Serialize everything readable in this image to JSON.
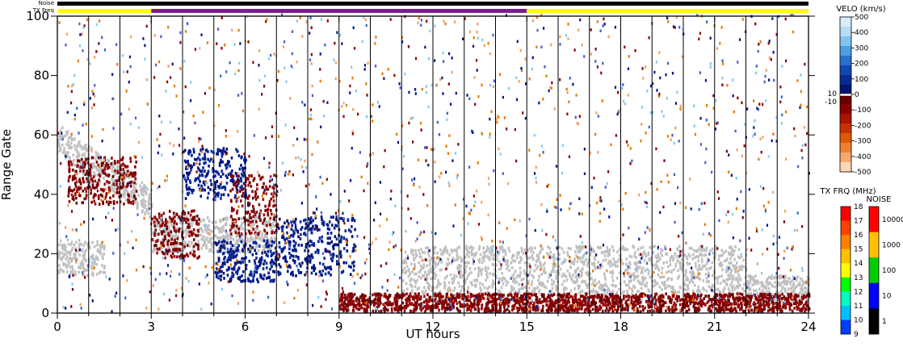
{
  "chart_data": {
    "type": "heatmap",
    "title": "",
    "xlabel": "UT hours",
    "ylabel": "Range Gate",
    "xlim": [
      0,
      24
    ],
    "ylim": [
      0,
      100
    ],
    "x_ticks": [
      "0",
      "3",
      "6",
      "9",
      "12",
      "15",
      "18",
      "21",
      "24"
    ],
    "y_ticks": [
      "0",
      "20",
      "40",
      "60",
      "80",
      "100"
    ],
    "status_bars": {
      "noise_label": "Noise",
      "txfreq_label": "TX Freq",
      "txfreq_segments": [
        {
          "start": 0,
          "end": 3,
          "color": "#ffff00"
        },
        {
          "start": 3,
          "end": 15,
          "color": "#7a1e8c"
        },
        {
          "start": 15,
          "end": 24,
          "color": "#ffff00"
        }
      ],
      "noise_color": "#000000"
    },
    "velocity_colorbar": {
      "title": "VELO (km/s)",
      "ticks": [
        "500",
        "400",
        "300",
        "200",
        "100",
        "0",
        "-100",
        "-200",
        "-300",
        "-400",
        "-500"
      ],
      "threshold_labels": [
        "10",
        "-10"
      ]
    },
    "txfreq_colorbar": {
      "title": "TX FRQ (MHz)",
      "ticks": [
        "18",
        "17",
        "16",
        "15",
        "14",
        "13",
        "12",
        "11",
        "10",
        "9"
      ]
    },
    "noise_colorbar": {
      "title": "NOISE",
      "ticks": [
        "10000",
        "1000",
        "100",
        "10",
        "1"
      ]
    },
    "regions": [
      {
        "kind": "ground",
        "label": "ground scatter descending",
        "x0": 0,
        "x1": 3,
        "y_start": 58,
        "y_end": 36,
        "thickness": 10
      },
      {
        "kind": "ground",
        "label": "ground scatter band",
        "x0": 3,
        "x1": 7,
        "y0": 20,
        "y1": 32
      },
      {
        "kind": "ground",
        "label": "ground scatter low",
        "x0": 0,
        "x1": 1.5,
        "y0": 12,
        "y1": 24
      },
      {
        "kind": "ground",
        "label": "ground scatter late",
        "x0": 11,
        "x1": 22,
        "y0": 6,
        "y1": 22
      },
      {
        "kind": "ground",
        "label": "ground scatter end",
        "x0": 22,
        "x1": 24,
        "y0": 3,
        "y1": 12
      },
      {
        "kind": "positive",
        "label": "blue patch 1",
        "x0": 4,
        "x1": 6,
        "y0": 38,
        "y1": 55
      },
      {
        "kind": "positive",
        "label": "blue patch 2",
        "x0": 5,
        "x1": 7,
        "y0": 10,
        "y1": 24
      },
      {
        "kind": "positive",
        "label": "blue patch 3",
        "x0": 7,
        "x1": 9.5,
        "y0": 12,
        "y1": 32
      },
      {
        "kind": "negative",
        "label": "red patch 1",
        "x0": 3,
        "x1": 4.5,
        "y0": 18,
        "y1": 34
      },
      {
        "kind": "negative",
        "label": "red patch 2",
        "x0": 5.5,
        "x1": 7,
        "y0": 26,
        "y1": 46
      },
      {
        "kind": "negative",
        "label": "red patch 3",
        "x0": 0.3,
        "x1": 2.5,
        "y0": 36,
        "y1": 52
      },
      {
        "kind": "negative",
        "label": "red bottom band",
        "x0": 9,
        "x1": 24,
        "y0": 0,
        "y1": 6
      }
    ]
  }
}
